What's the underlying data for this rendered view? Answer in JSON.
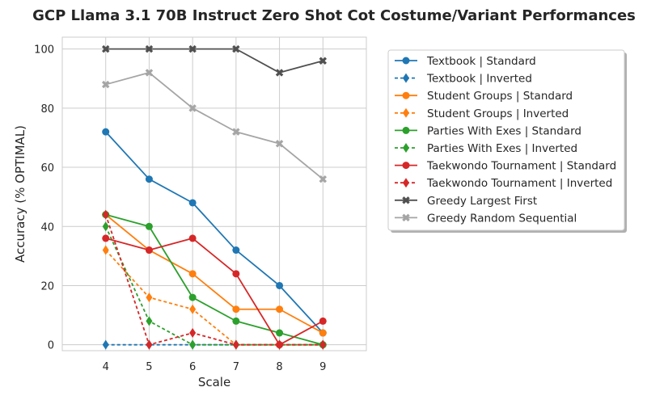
{
  "chart_data": {
    "type": "line",
    "title": "GCP Llama 3.1 70B Instruct Zero Shot Cot Costume/Variant Performances",
    "xlabel": "Scale",
    "ylabel": "Accuracy (% OPTIMAL)",
    "x": [
      4,
      5,
      6,
      7,
      8,
      9
    ],
    "xlim": [
      3,
      10
    ],
    "ylim": [
      -2,
      104
    ],
    "yticks": [
      0,
      20,
      40,
      60,
      80,
      100
    ],
    "grid": true,
    "legend_position": "outside-right",
    "series": [
      {
        "name": "Textbook | Standard",
        "values": [
          72,
          56,
          48,
          32,
          20,
          4
        ],
        "color": "#1f77b4",
        "dash": "solid",
        "marker": "circle"
      },
      {
        "name": "Textbook | Inverted",
        "values": [
          0,
          0,
          0,
          0,
          0,
          0
        ],
        "color": "#1f77b4",
        "dash": "dashed",
        "marker": "diamond"
      },
      {
        "name": "Student Groups | Standard",
        "values": [
          44,
          32,
          24,
          12,
          12,
          4
        ],
        "color": "#ff7f0e",
        "dash": "solid",
        "marker": "circle"
      },
      {
        "name": "Student Groups | Inverted",
        "values": [
          32,
          16,
          12,
          0,
          0,
          0
        ],
        "color": "#ff7f0e",
        "dash": "dashed",
        "marker": "diamond"
      },
      {
        "name": "Parties With Exes | Standard",
        "values": [
          44,
          40,
          16,
          8,
          4,
          0
        ],
        "color": "#2ca02c",
        "dash": "solid",
        "marker": "circle"
      },
      {
        "name": "Parties With Exes | Inverted",
        "values": [
          40,
          8,
          0,
          0,
          0,
          0
        ],
        "color": "#2ca02c",
        "dash": "dashed",
        "marker": "diamond"
      },
      {
        "name": "Taekwondo Tournament | Standard",
        "values": [
          36,
          32,
          36,
          24,
          0,
          8
        ],
        "color": "#d62728",
        "dash": "solid",
        "marker": "circle"
      },
      {
        "name": "Taekwondo Tournament | Inverted",
        "values": [
          44,
          0,
          4,
          0,
          0,
          0
        ],
        "color": "#d62728",
        "dash": "dashed",
        "marker": "diamond"
      },
      {
        "name": "Greedy Largest First",
        "values": [
          100,
          100,
          100,
          100,
          92,
          96
        ],
        "color": "#505050",
        "dash": "solid",
        "marker": "x"
      },
      {
        "name": "Greedy Random Sequential",
        "values": [
          88,
          92,
          80,
          72,
          68,
          56
        ],
        "color": "#a5a5a5",
        "dash": "solid",
        "marker": "x"
      }
    ]
  }
}
